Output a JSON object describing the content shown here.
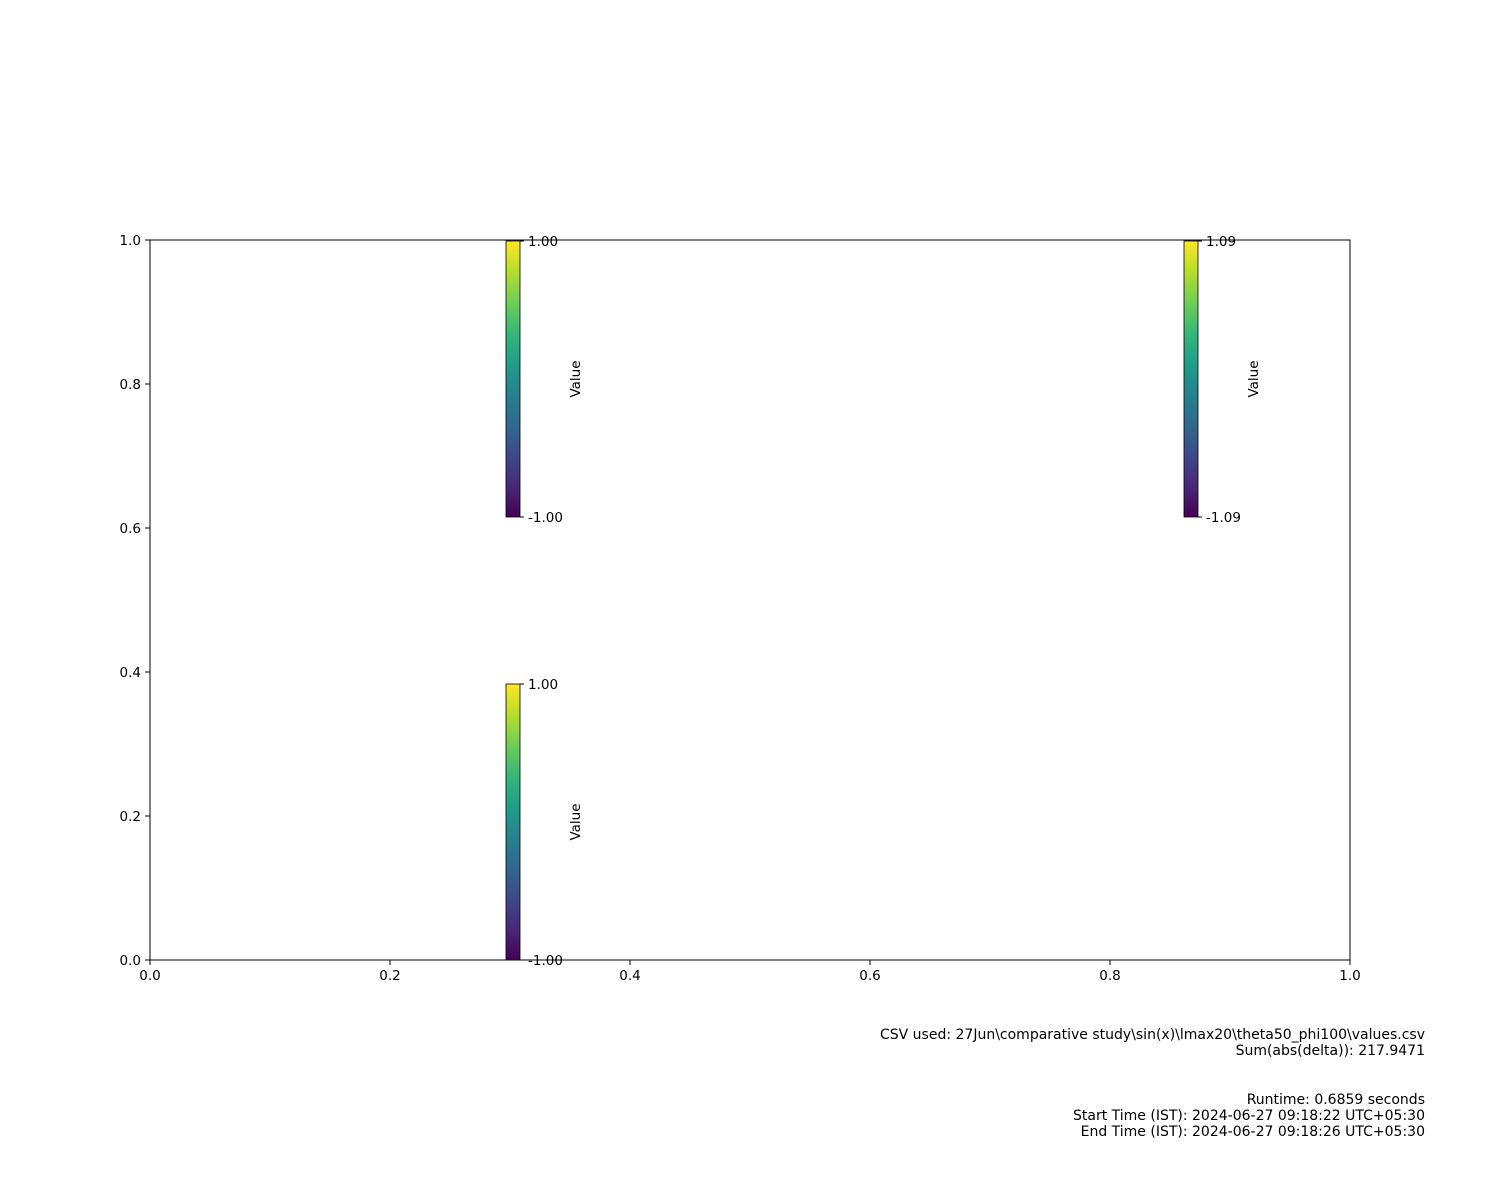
{
  "chart_data": {
    "type": "heatmap",
    "title": "",
    "xlabel": "",
    "ylabel": "",
    "xlim": [
      0.0,
      1.0
    ],
    "ylim": [
      0.0,
      1.0
    ],
    "grid": false,
    "x_ticks": [
      "0.0",
      "0.2",
      "0.4",
      "0.6",
      "0.8",
      "1.0"
    ],
    "y_ticks": [
      "0.0",
      "0.2",
      "0.4",
      "0.6",
      "0.8",
      "1.0"
    ],
    "colormap": [
      "#440154",
      "#482878",
      "#3e4989",
      "#31688e",
      "#26828e",
      "#1f9e89",
      "#35b779",
      "#6ece58",
      "#b5de2b",
      "#fde725"
    ],
    "colorbars": [
      {
        "position": "top-left",
        "label": "Value",
        "min": -1.0,
        "max": 1.0,
        "min_label": "-1.00",
        "max_label": "1.00"
      },
      {
        "position": "top-right",
        "label": "Value",
        "min": -1.09,
        "max": 1.09,
        "min_label": "-1.09",
        "max_label": "1.09"
      },
      {
        "position": "bottom-left",
        "label": "Value",
        "min": -1.0,
        "max": 1.0,
        "min_label": "-1.00",
        "max_label": "1.00"
      }
    ]
  },
  "footer": {
    "csv_line": "CSV used: 27Jun\\comparative study\\sin(x)\\lmax20\\theta50_phi100\\values.csv",
    "sum_line": "Sum(abs(delta)): 217.9471",
    "runtime_line": "Runtime: 0.6859 seconds",
    "start_line": "Start Time (IST): 2024-06-27 09:18:22 UTC+05:30",
    "end_line": "End Time (IST): 2024-06-27 09:18:26 UTC+05:30"
  }
}
